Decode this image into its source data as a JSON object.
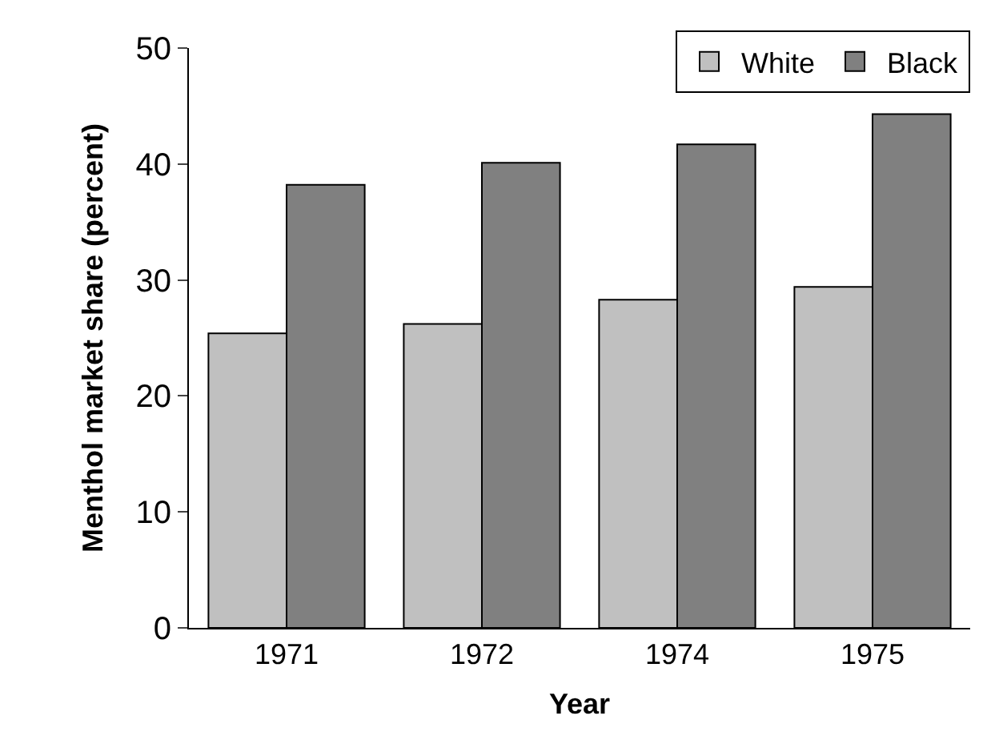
{
  "chart_data": {
    "type": "bar",
    "xlabel": "Year",
    "ylabel": "Menthol market share (percent)",
    "categories": [
      "1971",
      "1972",
      "1974",
      "1975"
    ],
    "series": [
      {
        "name": "White",
        "color": "#c0c0c0",
        "values": [
          25.4,
          26.2,
          28.3,
          29.4
        ]
      },
      {
        "name": "Black",
        "color": "#808080",
        "values": [
          38.2,
          40.1,
          41.7,
          44.3
        ]
      }
    ],
    "ylim": [
      0,
      50
    ],
    "yticks": [
      0,
      10,
      20,
      30,
      40,
      50
    ],
    "legend": "top right"
  }
}
